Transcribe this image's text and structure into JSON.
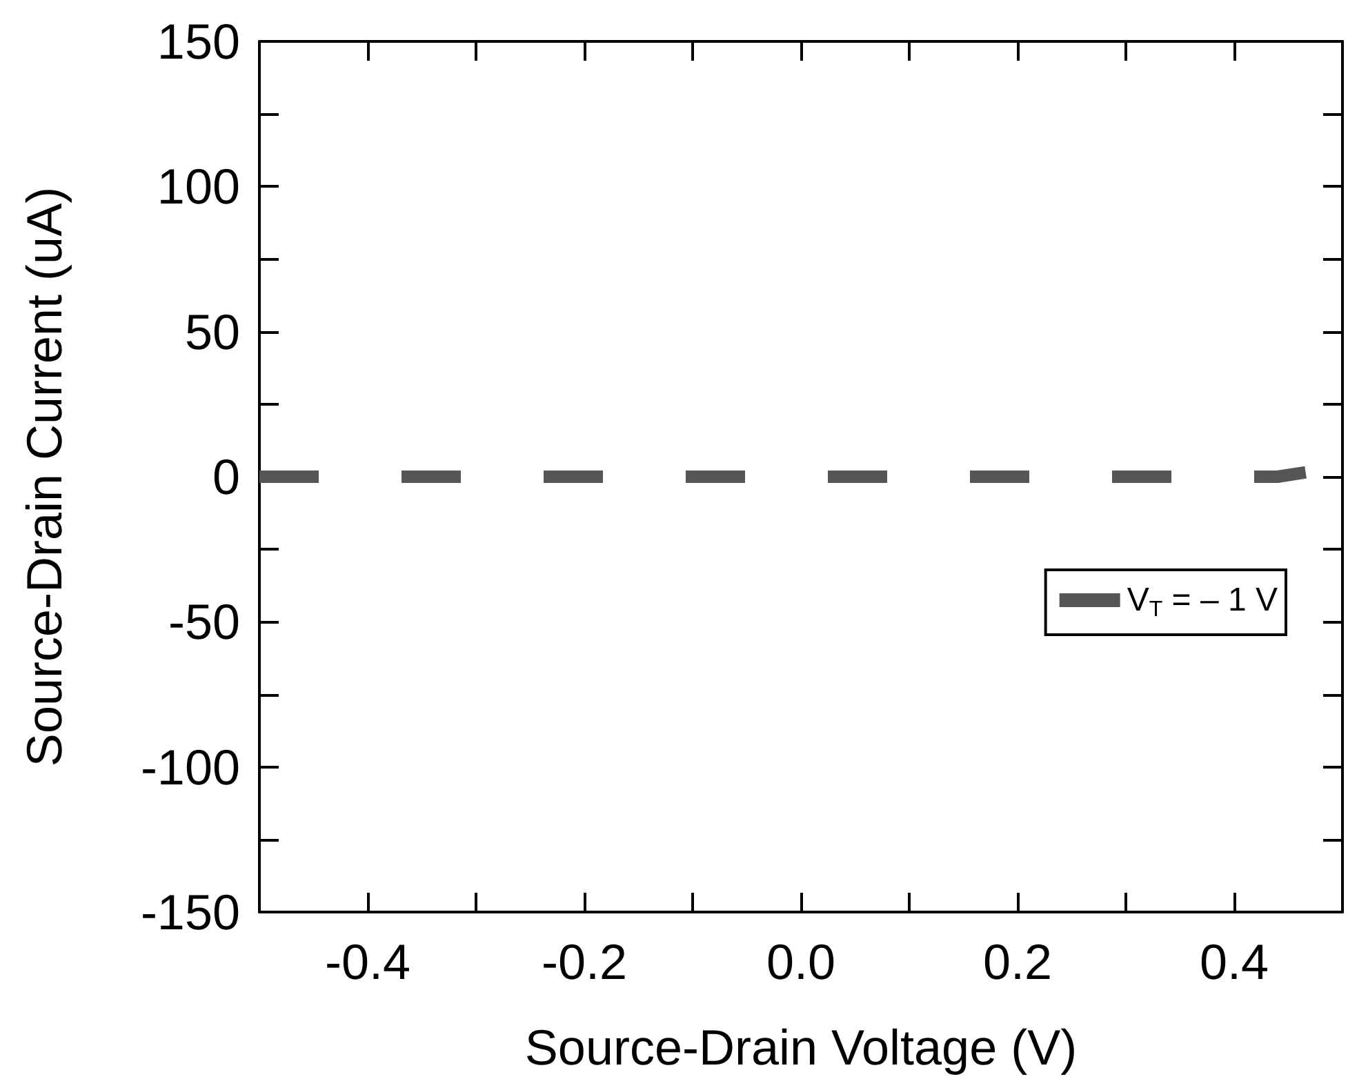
{
  "chart_data": {
    "type": "line",
    "xlabel": "Source-Drain Voltage (V)",
    "ylabel": "Source-Drain Current (uA)",
    "x": [
      -0.5,
      0.44,
      0.466
    ],
    "series": [
      {
        "name": "V$_{T}$ = – 1 V",
        "color": "#555555",
        "values": [
          0,
          0,
          1.5
        ],
        "line_style": "dashed"
      }
    ],
    "xlim": [
      -0.5,
      0.5
    ],
    "xticks": [
      {
        "value": -0.5,
        "label": null
      },
      -0.4,
      {
        "value": -0.3,
        "label": null
      },
      -0.2,
      {
        "value": -0.1,
        "label": null
      },
      {
        "value": 0,
        "label": "0.0"
      },
      {
        "value": 0.1,
        "label": null
      },
      0.2,
      {
        "value": 0.3,
        "label": null
      },
      0.4,
      {
        "value": 0.5,
        "label": null
      }
    ],
    "ylim": [
      -150,
      150
    ],
    "yticks": [
      -150,
      {
        "value": -125,
        "label": null
      },
      -100,
      {
        "value": -75,
        "label": null
      },
      -50,
      {
        "value": -25,
        "label": null
      },
      0,
      {
        "value": 25,
        "label": null
      },
      50,
      {
        "value": 75,
        "label": null
      },
      100,
      {
        "value": 125,
        "label": null
      },
      150
    ],
    "grid": false,
    "legend": "right",
    "marker": "none"
  }
}
